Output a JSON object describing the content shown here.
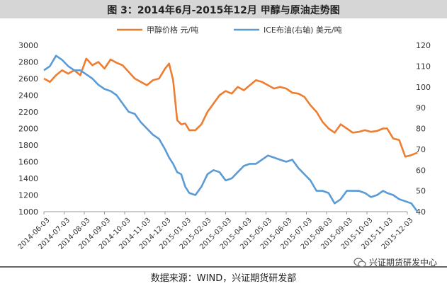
{
  "title": "图 3：2014年6月-2015年12月 甲醇与原油走势图",
  "source": "数据来源：WIND，兴证期货研发部",
  "watermark": "兴证期货研发中心",
  "chart_data": {
    "type": "line",
    "x_tick_labels": [
      "2014-06-03",
      "2014-07-03",
      "2014-08-03",
      "2014-09-03",
      "2014-10-03",
      "2014-11-03",
      "2014-12-03",
      "2015-01-03",
      "2015-02-03",
      "2015-03-03",
      "2015-04-03",
      "2015-05-03",
      "2015-06-03",
      "2015-07-03",
      "2015-08-03",
      "2015-09-03",
      "2015-10-03",
      "2015-11-03",
      "2015-12-03"
    ],
    "y_left": {
      "ticks": [
        1000,
        1200,
        1400,
        1600,
        1800,
        2000,
        2200,
        2400,
        2600,
        2800,
        3000
      ],
      "range": [
        1000,
        3000
      ]
    },
    "y_right": {
      "ticks": [
        40,
        50,
        60,
        70,
        80,
        90,
        100,
        110,
        120
      ],
      "range": [
        40,
        120
      ]
    },
    "grid": false,
    "legend_position": "top",
    "series": [
      {
        "name": "甲醇价格 元/吨",
        "axis": "left",
        "color": "#ed7d31",
        "x": [
          0,
          0.3,
          0.6,
          0.9,
          1.2,
          1.5,
          1.8,
          2.1,
          2.4,
          2.7,
          3,
          3.3,
          3.6,
          3.9,
          4.2,
          4.5,
          4.8,
          5.1,
          5.4,
          5.7,
          6,
          6.2,
          6.4,
          6.6,
          6.8,
          7,
          7.2,
          7.5,
          7.8,
          8.1,
          8.4,
          8.7,
          9,
          9.3,
          9.6,
          9.9,
          10.2,
          10.5,
          10.8,
          11.1,
          11.4,
          11.7,
          12,
          12.3,
          12.6,
          12.9,
          13.2,
          13.5,
          13.8,
          14.1,
          14.4,
          14.7,
          15,
          15.3,
          15.6,
          15.9,
          16.2,
          16.5,
          16.8,
          17,
          17.3,
          17.6,
          17.9,
          18.2,
          18.5
        ],
        "values": [
          2600,
          2560,
          2640,
          2700,
          2660,
          2700,
          2640,
          2840,
          2760,
          2800,
          2720,
          2830,
          2790,
          2760,
          2680,
          2600,
          2560,
          2520,
          2580,
          2600,
          2720,
          2780,
          2580,
          2100,
          2050,
          2060,
          1980,
          1980,
          2050,
          2200,
          2300,
          2400,
          2450,
          2420,
          2500,
          2460,
          2520,
          2580,
          2560,
          2520,
          2480,
          2500,
          2480,
          2430,
          2420,
          2380,
          2280,
          2200,
          2080,
          2000,
          1950,
          2050,
          2000,
          1950,
          1960,
          1980,
          1960,
          1970,
          2000,
          2000,
          1880,
          1860,
          1660,
          1680,
          1710
        ]
      },
      {
        "name": "ICE布油(右轴) 美元/吨",
        "axis": "right",
        "color": "#5b9bd5",
        "x": [
          0,
          0.3,
          0.6,
          0.9,
          1.2,
          1.5,
          1.8,
          2.1,
          2.4,
          2.7,
          3,
          3.3,
          3.6,
          3.9,
          4.2,
          4.5,
          4.8,
          5.1,
          5.4,
          5.7,
          6,
          6.2,
          6.4,
          6.6,
          6.8,
          7,
          7.2,
          7.5,
          7.8,
          8.1,
          8.4,
          8.7,
          9,
          9.3,
          9.6,
          9.9,
          10.2,
          10.5,
          10.8,
          11.1,
          11.4,
          11.7,
          12,
          12.3,
          12.6,
          12.9,
          13.2,
          13.5,
          13.8,
          14.1,
          14.4,
          14.7,
          15,
          15.3,
          15.6,
          15.9,
          16.2,
          16.5,
          16.8,
          17,
          17.3,
          17.6,
          17.9,
          18.2,
          18.5
        ],
        "values": [
          108,
          110,
          115,
          113,
          110,
          108,
          108,
          106,
          104,
          101,
          99,
          98,
          96,
          92,
          88,
          87,
          83,
          80,
          77,
          75,
          70,
          66,
          63,
          59,
          58,
          52,
          49,
          48,
          52,
          58,
          60,
          59,
          55,
          56,
          59,
          62,
          63,
          63,
          65,
          67,
          66,
          65,
          64,
          65,
          61,
          58,
          55,
          50,
          50,
          49,
          44,
          46,
          50,
          50,
          50,
          49,
          47,
          48,
          50,
          49,
          48,
          46,
          45,
          44,
          40
        ]
      }
    ]
  }
}
